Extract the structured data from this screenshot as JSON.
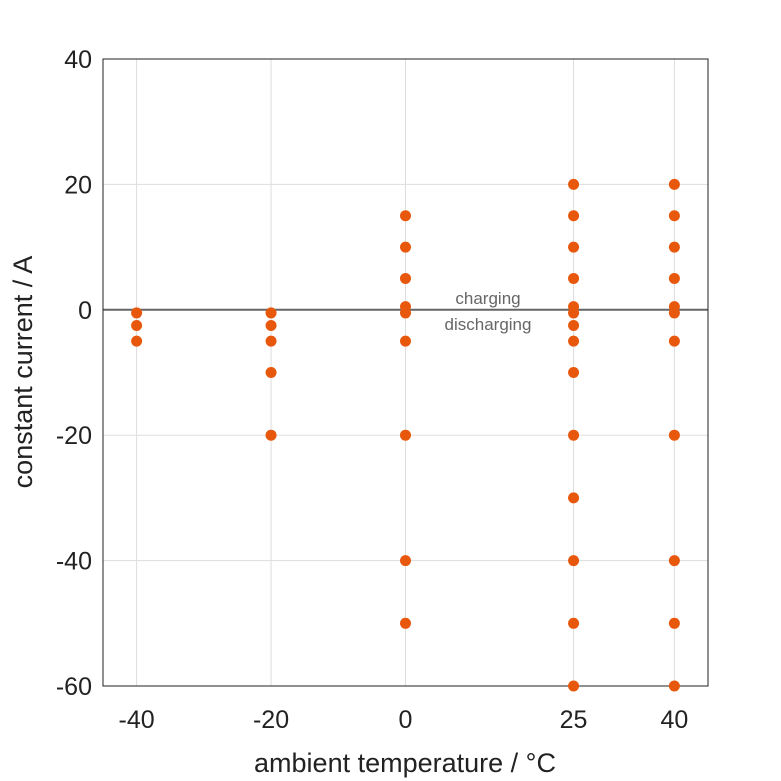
{
  "chart_data": {
    "type": "scatter",
    "title": "",
    "xlabel": "ambient temperature / °C",
    "ylabel": "constant current / A",
    "xlim": [
      -45,
      45
    ],
    "ylim": [
      -60,
      40
    ],
    "xticks": [
      -40,
      -20,
      0,
      25,
      40
    ],
    "yticks": [
      40,
      20,
      0,
      -20,
      -40,
      -60
    ],
    "grid": true,
    "color": "#e8580c",
    "annotations": [
      "charging",
      "discharging"
    ],
    "series": [
      {
        "x": -40,
        "values": [
          -0.5,
          -2.5,
          -5
        ]
      },
      {
        "x": -20,
        "values": [
          -0.5,
          -2.5,
          -5,
          -10,
          -20
        ]
      },
      {
        "x": 0,
        "values": [
          15,
          10,
          5,
          0.5,
          -0.5,
          -5,
          -20,
          -40,
          -50
        ]
      },
      {
        "x": 25,
        "values": [
          20,
          15,
          10,
          5,
          0.5,
          -0.5,
          -2.5,
          -5,
          -10,
          -20,
          -30,
          -40,
          -50,
          -60
        ]
      },
      {
        "x": 40,
        "values": [
          20,
          15,
          10,
          5,
          0.5,
          -0.5,
          -5,
          -20,
          -40,
          -50,
          -60
        ]
      }
    ]
  }
}
